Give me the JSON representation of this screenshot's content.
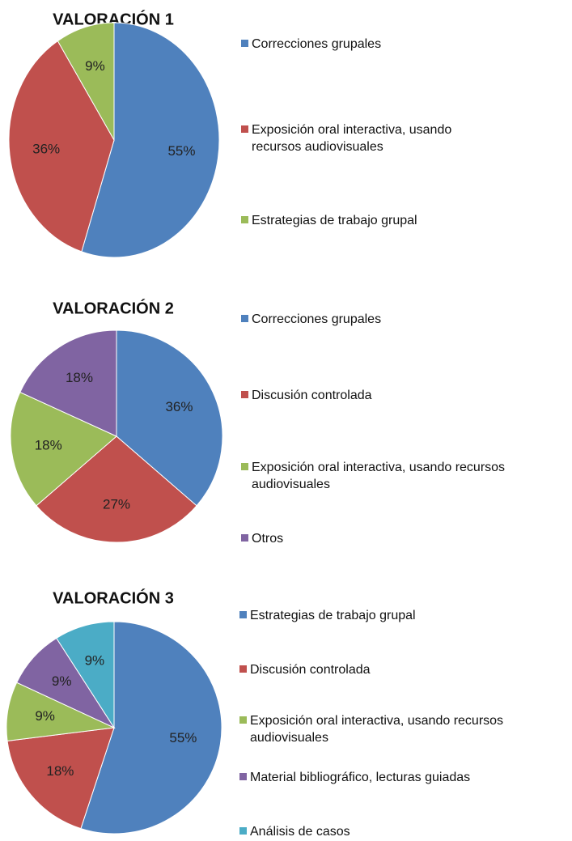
{
  "chart_data": [
    {
      "type": "pie",
      "title": "VALORACIÓN 1",
      "categories": [
        "Correcciones grupales",
        "Exposición oral interactiva, usando recursos audiovisuales",
        "Estrategias de trabajo grupal"
      ],
      "values": [
        55,
        36,
        9
      ],
      "value_labels": [
        "55%",
        "36%",
        "9%"
      ],
      "colors": [
        "#4f81bd",
        "#c0504d",
        "#9bbb59"
      ]
    },
    {
      "type": "pie",
      "title": "VALORACIÓN 2",
      "categories": [
        "Correcciones grupales",
        "Discusión controlada",
        "Exposición oral interactiva, usando recursos audiovisuales",
        "Otros"
      ],
      "values": [
        36,
        27,
        18,
        18
      ],
      "value_labels": [
        "36%",
        "27%",
        "18%",
        "18%"
      ],
      "colors": [
        "#4f81bd",
        "#c0504d",
        "#9bbb59",
        "#8064a2"
      ]
    },
    {
      "type": "pie",
      "title": "VALORACIÓN 3",
      "categories": [
        "Estrategias de trabajo grupal",
        "Discusión controlada",
        "Exposición oral interactiva, usando recursos audiovisuales",
        "Material bibliográfico, lecturas guiadas",
        "Análisis de casos"
      ],
      "values": [
        55,
        18,
        9,
        9,
        9
      ],
      "value_labels": [
        "55%",
        "18%",
        "9%",
        "9%",
        "9%"
      ],
      "colors": [
        "#4f81bd",
        "#c0504d",
        "#9bbb59",
        "#8064a2",
        "#4bacc6"
      ]
    }
  ]
}
